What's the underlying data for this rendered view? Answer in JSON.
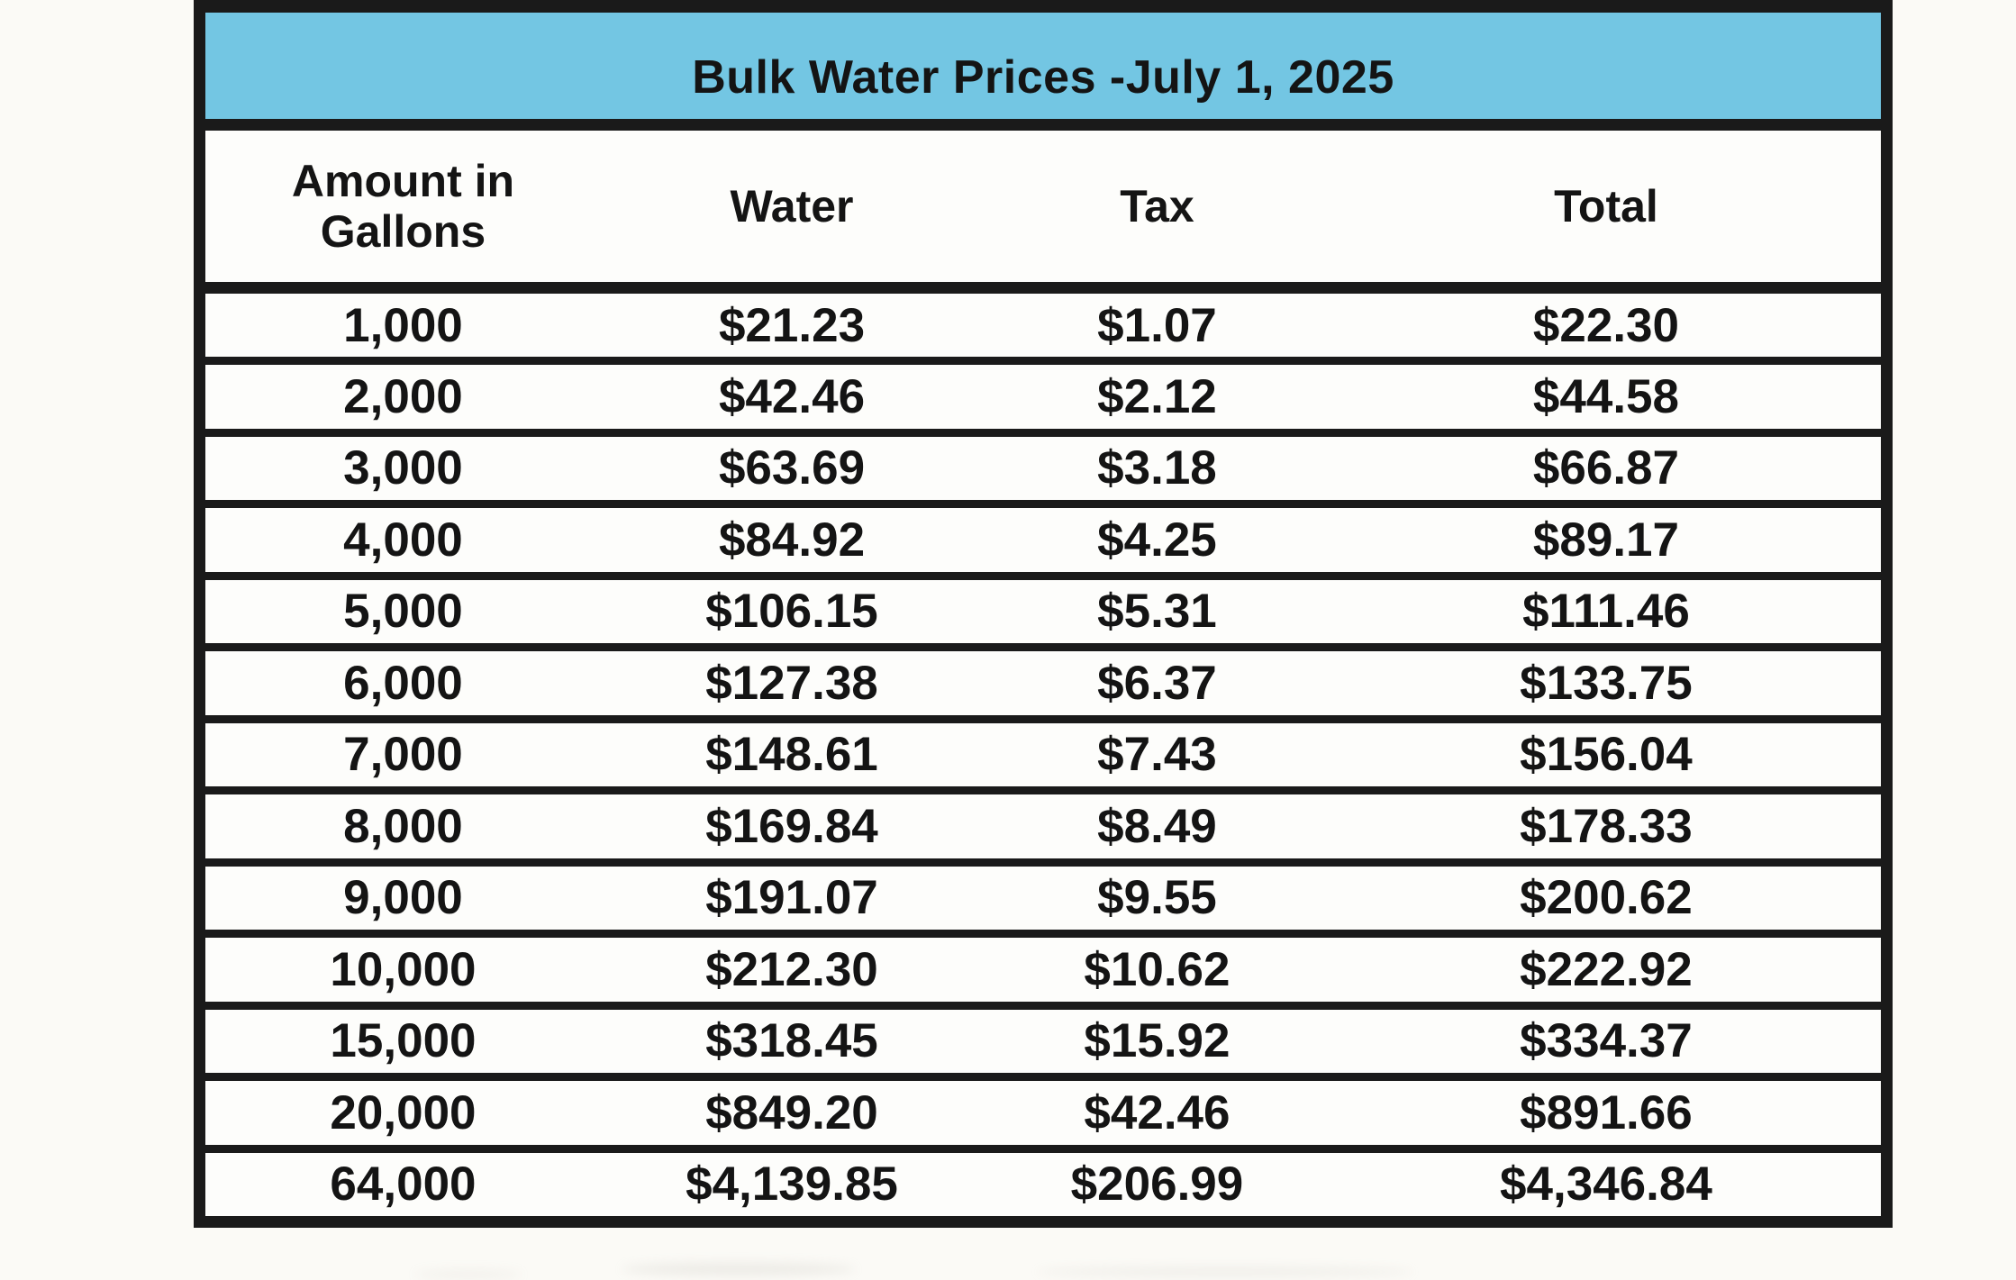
{
  "page": {
    "background": "#fbfaf6"
  },
  "table": {
    "title": "Bulk Water Prices -July 1, 2025",
    "title_bg": "#73c6e3",
    "border_color": "#1a1a1a",
    "columns": [
      "Amount in Gallons",
      "Water",
      "Tax",
      "Total"
    ],
    "rows": [
      {
        "amount": "1,000",
        "water": "$21.23",
        "tax": "$1.07",
        "total": "$22.30"
      },
      {
        "amount": "2,000",
        "water": "$42.46",
        "tax": "$2.12",
        "total": "$44.58"
      },
      {
        "amount": "3,000",
        "water": "$63.69",
        "tax": "$3.18",
        "total": "$66.87"
      },
      {
        "amount": "4,000",
        "water": "$84.92",
        "tax": "$4.25",
        "total": "$89.17"
      },
      {
        "amount": "5,000",
        "water": "$106.15",
        "tax": "$5.31",
        "total": "$111.46"
      },
      {
        "amount": "6,000",
        "water": "$127.38",
        "tax": "$6.37",
        "total": "$133.75"
      },
      {
        "amount": "7,000",
        "water": "$148.61",
        "tax": "$7.43",
        "total": "$156.04"
      },
      {
        "amount": "8,000",
        "water": "$169.84",
        "tax": "$8.49",
        "total": "$178.33"
      },
      {
        "amount": "9,000",
        "water": "$191.07",
        "tax": "$9.55",
        "total": "$200.62"
      },
      {
        "amount": "10,000",
        "water": "$212.30",
        "tax": "$10.62",
        "total": "$222.92"
      },
      {
        "amount": "15,000",
        "water": "$318.45",
        "tax": "$15.92",
        "total": "$334.37"
      },
      {
        "amount": "20,000",
        "water": "$849.20",
        "tax": "$42.46",
        "total": "$891.66"
      },
      {
        "amount": "64,000",
        "water": "$4,139.85",
        "tax": "$206.99",
        "total": "$4,346.84"
      }
    ]
  }
}
